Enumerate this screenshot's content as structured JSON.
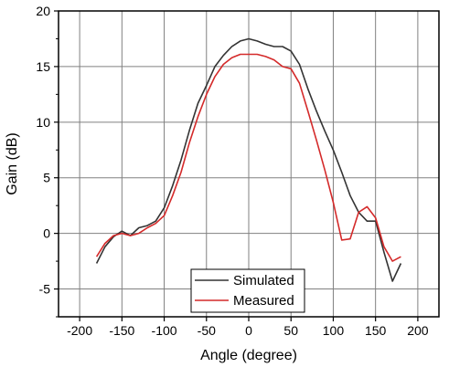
{
  "chart_data": {
    "type": "line",
    "xlabel": "Angle (degree)",
    "ylabel": "Gain (dB)",
    "xlim": [
      -225,
      225
    ],
    "ylim": [
      -7.5,
      20
    ],
    "xticks": [
      -200,
      -150,
      -100,
      -50,
      0,
      50,
      100,
      150,
      200
    ],
    "yticks": [
      -5,
      0,
      5,
      10,
      15,
      20
    ],
    "grid": true,
    "legend_position": "bottom-center",
    "series": [
      {
        "name": "Simulated",
        "color": "#333333",
        "x": [
          -180,
          -170,
          -160,
          -150,
          -140,
          -130,
          -120,
          -110,
          -100,
          -90,
          -80,
          -70,
          -60,
          -50,
          -40,
          -30,
          -20,
          -10,
          0,
          10,
          20,
          30,
          40,
          50,
          60,
          70,
          80,
          90,
          100,
          110,
          120,
          130,
          140,
          150,
          160,
          170,
          180
        ],
        "y": [
          -2.7,
          -1.2,
          -0.3,
          0.2,
          -0.2,
          0.5,
          0.7,
          1.1,
          2.3,
          4.3,
          6.6,
          9.3,
          11.7,
          13.3,
          15,
          16,
          16.8,
          17.3,
          17.5,
          17.3,
          17,
          16.8,
          16.8,
          16.4,
          15.2,
          13,
          11,
          9.2,
          7.5,
          5.5,
          3.4,
          1.9,
          1.1,
          1.1,
          -1.7,
          -4.3,
          -2.7
        ]
      },
      {
        "name": "Measured",
        "color": "#d42a2a",
        "x": [
          -180,
          -170,
          -160,
          -150,
          -140,
          -130,
          -120,
          -110,
          -100,
          -90,
          -80,
          -70,
          -60,
          -50,
          -40,
          -30,
          -20,
          -10,
          0,
          10,
          20,
          30,
          40,
          50,
          60,
          70,
          80,
          90,
          100,
          110,
          120,
          130,
          140,
          150,
          160,
          170,
          180
        ],
        "y": [
          -2.1,
          -0.9,
          -0.2,
          0,
          -0.2,
          0,
          0.5,
          0.9,
          1.6,
          3.4,
          5.5,
          8.2,
          10.5,
          12.5,
          14.1,
          15.2,
          15.8,
          16.1,
          16.1,
          16.1,
          15.9,
          15.6,
          15,
          14.8,
          13.5,
          11,
          8.4,
          5.7,
          2.8,
          -0.6,
          -0.5,
          1.9,
          2.4,
          1.4,
          -1.2,
          -2.5,
          -2.1
        ]
      }
    ]
  }
}
